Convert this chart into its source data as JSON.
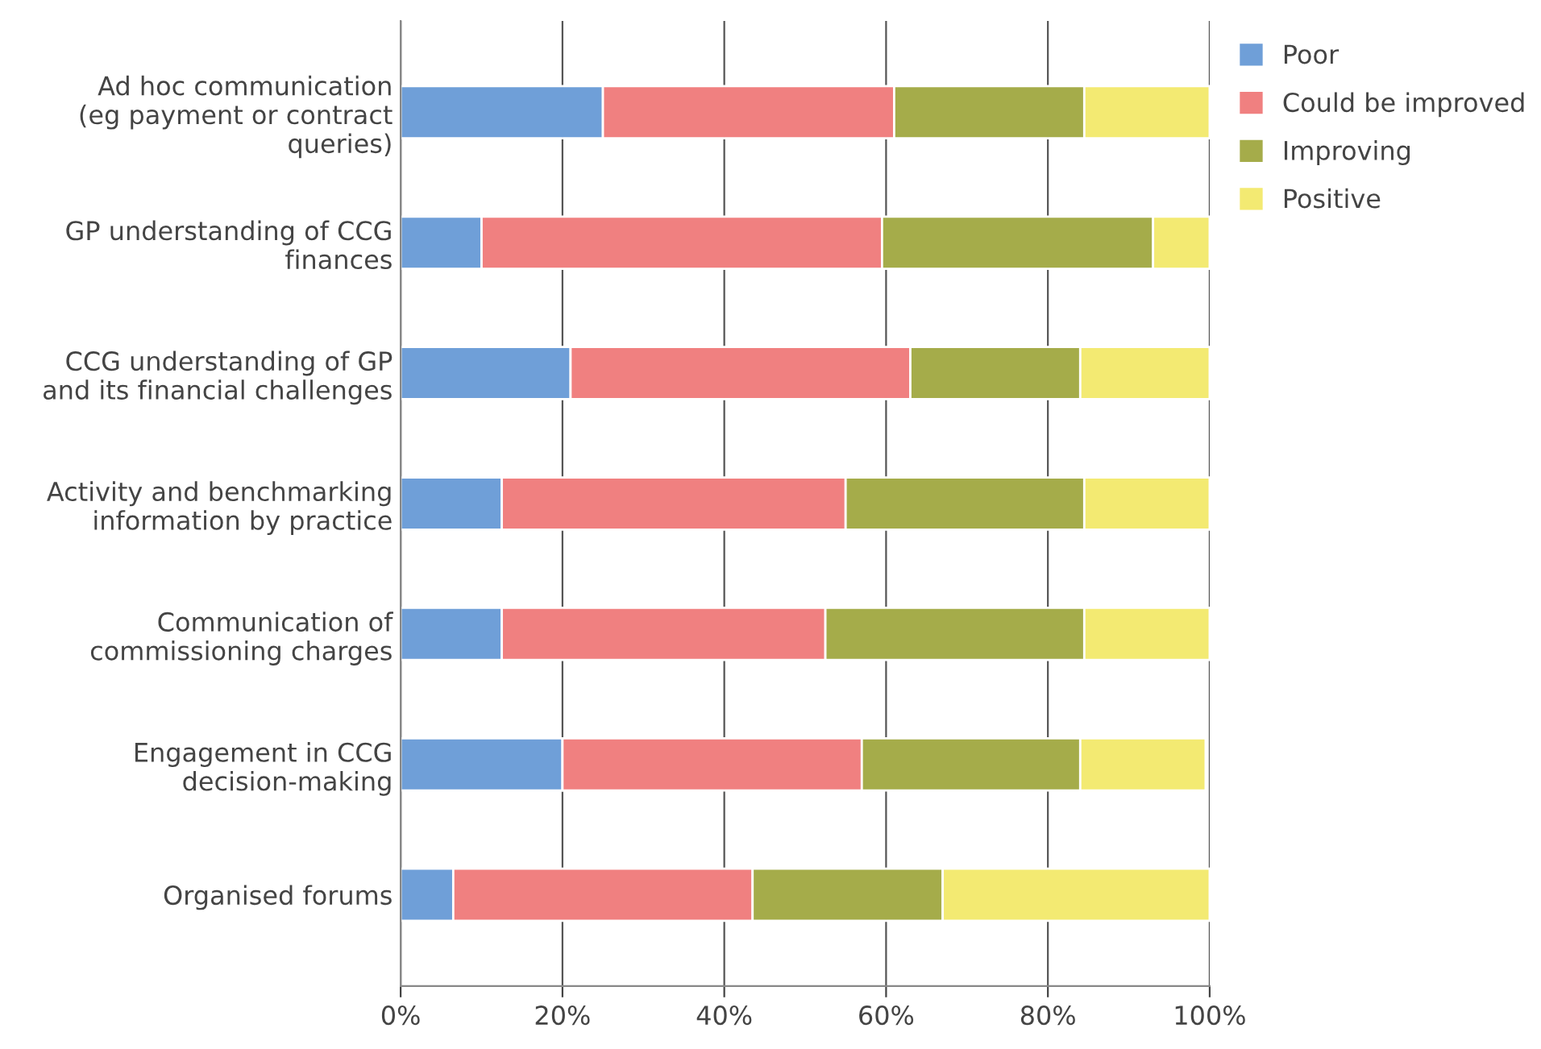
{
  "chart_data": {
    "type": "bar",
    "orientation": "horizontal",
    "stacked": true,
    "categories": [
      "Ad hoc communication\n(eg payment or contract\nqueries)",
      "GP understanding of CCG\nfinances",
      "CCG understanding of GP\nand its financial challenges",
      "Activity and benchmarking\ninformation by practice",
      "Communication of\ncommissioning charges",
      "Engagement in CCG\ndecision-making",
      "Organised forums"
    ],
    "series": [
      {
        "name": "Poor",
        "color": "#6f9fd8",
        "values": [
          25,
          10,
          21,
          12.5,
          12.5,
          20,
          6.5
        ]
      },
      {
        "name": "Could be improved",
        "color": "#f08080",
        "values": [
          36,
          49.5,
          42,
          42.5,
          40,
          37,
          37
        ]
      },
      {
        "name": "Improving",
        "color": "#a5ac4a",
        "values": [
          23.5,
          33.5,
          21,
          29.5,
          32,
          27,
          23.5
        ]
      },
      {
        "name": "Positive",
        "color": "#f3ea72",
        "values": [
          15.5,
          7,
          16,
          15.5,
          15.5,
          15.5,
          33
        ]
      }
    ],
    "xlim": [
      0,
      100
    ],
    "xticks": [
      {
        "value": 0,
        "label": "0%"
      },
      {
        "value": 20,
        "label": "20%"
      },
      {
        "value": 40,
        "label": "40%"
      },
      {
        "value": 60,
        "label": "60%"
      },
      {
        "value": 80,
        "label": "80%"
      },
      {
        "value": 100,
        "label": "100%"
      }
    ],
    "grid": "x",
    "legend": "top right"
  }
}
